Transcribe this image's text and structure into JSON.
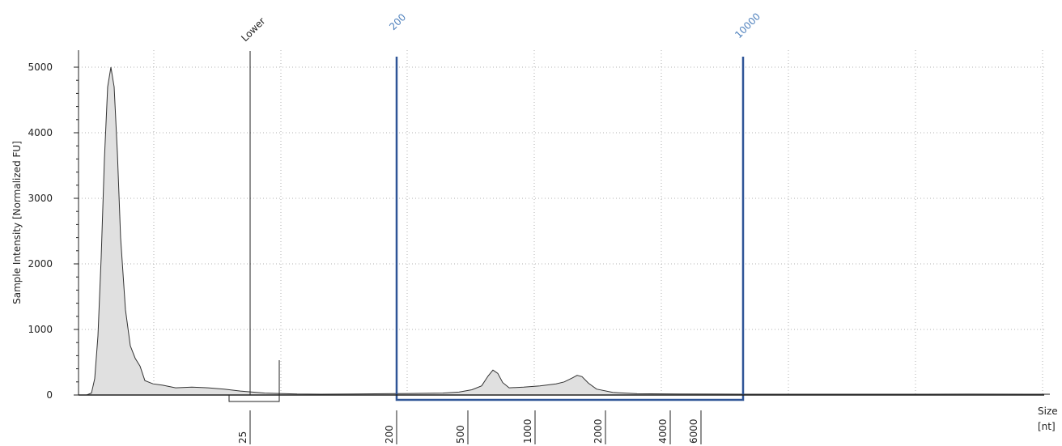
{
  "chart_data": {
    "type": "area",
    "xlabel": "Size",
    "xunit": "[nt]",
    "ylabel": "Sample Intensity [Normalized FU]",
    "ylim": [
      0,
      5200
    ],
    "yticks": [
      0,
      1000,
      2000,
      3000,
      4000,
      5000
    ],
    "grid": true,
    "size_ladder": [
      "25",
      "200",
      "500",
      "1000",
      "2000",
      "4000",
      "6000"
    ],
    "annotations": [
      {
        "label": "Lower",
        "color": "#222222"
      },
      {
        "label": "200",
        "color": "#4f81bd"
      },
      {
        "label": "10000",
        "color": "#4f81bd"
      }
    ],
    "region": {
      "from": "200",
      "to": "10000",
      "color": "#2f5597"
    },
    "series": [
      {
        "fill": "#e0e0e0",
        "stroke": "#333333",
        "points": [
          [
            0,
            0
          ],
          [
            0.5,
            0
          ],
          [
            0.8,
            30
          ],
          [
            1.0,
            250
          ],
          [
            1.2,
            900
          ],
          [
            1.4,
            2100
          ],
          [
            1.6,
            3600
          ],
          [
            1.8,
            4700
          ],
          [
            2.0,
            5000
          ],
          [
            2.2,
            4700
          ],
          [
            2.4,
            3700
          ],
          [
            2.6,
            2400
          ],
          [
            2.9,
            1300
          ],
          [
            3.2,
            750
          ],
          [
            3.5,
            560
          ],
          [
            3.8,
            440
          ],
          [
            4.1,
            220
          ],
          [
            4.6,
            170
          ],
          [
            5.2,
            150
          ],
          [
            6.0,
            110
          ],
          [
            7.0,
            120
          ],
          [
            8.0,
            110
          ],
          [
            9.0,
            90
          ],
          [
            10.0,
            60
          ],
          [
            11.5,
            30
          ],
          [
            13.5,
            15
          ],
          [
            15.0,
            12
          ],
          [
            17.0,
            16
          ],
          [
            19.0,
            20
          ],
          [
            21.0,
            25
          ],
          [
            22.5,
            30
          ],
          [
            23.5,
            45
          ],
          [
            24.3,
            80
          ],
          [
            24.9,
            140
          ],
          [
            25.3,
            290
          ],
          [
            25.6,
            380
          ],
          [
            25.9,
            330
          ],
          [
            26.2,
            190
          ],
          [
            26.6,
            110
          ],
          [
            27.5,
            120
          ],
          [
            28.5,
            140
          ],
          [
            29.5,
            170
          ],
          [
            30.0,
            200
          ],
          [
            30.5,
            260
          ],
          [
            30.8,
            300
          ],
          [
            31.1,
            280
          ],
          [
            31.5,
            180
          ],
          [
            32.0,
            90
          ],
          [
            33.0,
            40
          ],
          [
            34.5,
            20
          ],
          [
            37.0,
            15
          ],
          [
            41.0,
            12
          ],
          [
            48.0,
            12
          ],
          [
            55.0,
            14
          ],
          [
            60.0,
            12
          ]
        ]
      }
    ]
  }
}
